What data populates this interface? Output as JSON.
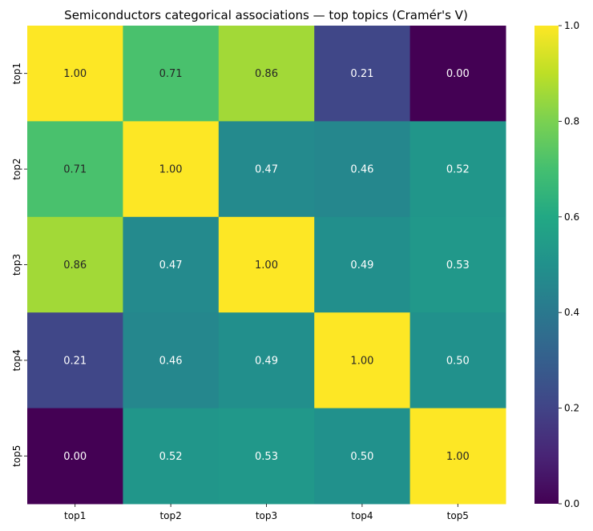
{
  "chart_data": {
    "type": "heatmap",
    "title": "Semiconductors categorical associations — top topics (Cramér's V)",
    "x_categories": [
      "top1",
      "top2",
      "top3",
      "top4",
      "top5"
    ],
    "y_categories": [
      "top1",
      "top2",
      "top3",
      "top4",
      "top5"
    ],
    "values": [
      [
        1.0,
        0.71,
        0.86,
        0.21,
        0.0
      ],
      [
        0.71,
        1.0,
        0.47,
        0.46,
        0.52
      ],
      [
        0.86,
        0.47,
        1.0,
        0.49,
        0.53
      ],
      [
        0.21,
        0.46,
        0.49,
        1.0,
        0.5
      ],
      [
        0.0,
        0.52,
        0.53,
        0.5,
        1.0
      ]
    ],
    "colormap": "viridis",
    "vmin": 0.0,
    "vmax": 1.0,
    "colorbar_ticks": [
      "0.0",
      "0.2",
      "0.4",
      "0.6",
      "0.8",
      "1.0"
    ],
    "annotations": true,
    "annotation_format": "0.00",
    "grid": false,
    "legend": "colorbar-right"
  }
}
